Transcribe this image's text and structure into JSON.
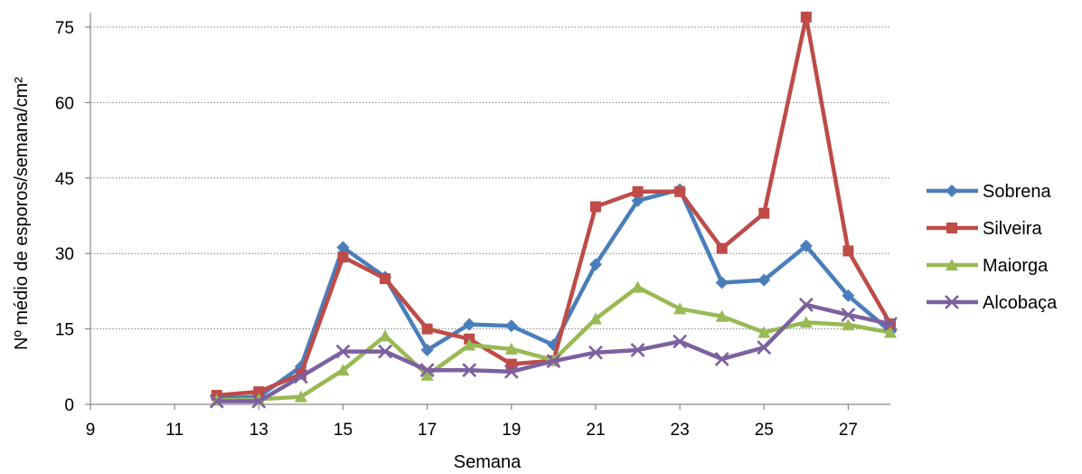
{
  "chart_data": {
    "type": "line",
    "title": "",
    "xlabel": "Semana",
    "ylabel": "Nº  médio de esporos/semana/cm²",
    "xlim": [
      9,
      28
    ],
    "ylim": [
      0,
      78
    ],
    "xticks": [
      9,
      11,
      13,
      15,
      17,
      19,
      21,
      23,
      25,
      27
    ],
    "yticks": [
      0,
      15,
      30,
      45,
      60,
      75
    ],
    "grid": "horizontal dotted",
    "legend_position": "right",
    "x": [
      12,
      13,
      14,
      15,
      16,
      17,
      18,
      19,
      20,
      21,
      22,
      23,
      24,
      25,
      26,
      27,
      28
    ],
    "series": [
      {
        "name": "Sobrena",
        "color": "#4a7ebb",
        "marker": "diamond",
        "values": [
          1.2,
          1.5,
          7.5,
          31.2,
          25.3,
          10.8,
          15.9,
          15.6,
          11.8,
          27.8,
          40.5,
          42.7,
          24.2,
          24.7,
          31.5,
          21.6,
          14.5
        ]
      },
      {
        "name": "Silveira",
        "color": "#be4b48",
        "marker": "square",
        "values": [
          1.8,
          2.5,
          6.0,
          29.3,
          25.0,
          15.0,
          13.0,
          8.0,
          8.7,
          39.3,
          42.3,
          42.3,
          31.0,
          38.0,
          77.0,
          30.5,
          16.0
        ]
      },
      {
        "name": "Maiorga",
        "color": "#98b954",
        "marker": "triangle",
        "values": [
          0.8,
          1.0,
          1.5,
          6.8,
          13.6,
          5.8,
          11.8,
          11.0,
          8.8,
          17.0,
          23.3,
          19.0,
          17.5,
          14.3,
          16.3,
          15.8,
          14.3
        ]
      },
      {
        "name": "Alcobaça",
        "color": "#7d60a0",
        "marker": "x",
        "values": [
          0.6,
          0.6,
          5.5,
          10.5,
          10.5,
          6.8,
          6.8,
          6.5,
          8.6,
          10.3,
          10.8,
          12.5,
          9.0,
          11.3,
          19.8,
          17.8,
          16.0
        ]
      }
    ]
  }
}
